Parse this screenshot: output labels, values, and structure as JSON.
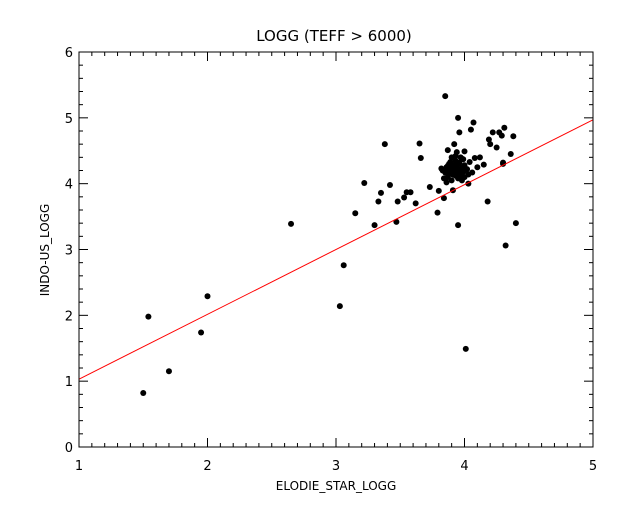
{
  "chart_data": {
    "type": "scatter",
    "title": "LOGG (TEFF > 6000)",
    "xlabel": "ELODIE_STAR_LOGG",
    "ylabel": "INDO-US_LOGG",
    "xlim": [
      1,
      5
    ],
    "ylim": [
      0,
      6
    ],
    "xticks": [
      1,
      2,
      3,
      4,
      5
    ],
    "yticks": [
      0,
      1,
      2,
      3,
      4,
      5,
      6
    ],
    "xtick_labels": [
      "1",
      "2",
      "3",
      "4",
      "5"
    ],
    "ytick_labels": [
      "0",
      "1",
      "2",
      "3",
      "4",
      "5",
      "6"
    ],
    "grid": false,
    "points_color": "#000000",
    "fit_line": {
      "color": "#ff0000",
      "x": [
        1,
        5
      ],
      "y": [
        1.03,
        4.97
      ]
    },
    "points": [
      [
        1.5,
        0.82
      ],
      [
        1.54,
        1.98
      ],
      [
        1.7,
        1.15
      ],
      [
        1.95,
        1.74
      ],
      [
        2.0,
        2.29
      ],
      [
        2.65,
        3.39
      ],
      [
        3.03,
        2.14
      ],
      [
        3.06,
        2.76
      ],
      [
        3.15,
        3.55
      ],
      [
        3.22,
        4.01
      ],
      [
        3.3,
        3.37
      ],
      [
        3.33,
        3.73
      ],
      [
        3.35,
        3.86
      ],
      [
        3.38,
        4.6
      ],
      [
        3.42,
        3.98
      ],
      [
        3.47,
        3.42
      ],
      [
        3.48,
        3.73
      ],
      [
        3.53,
        3.79
      ],
      [
        3.55,
        3.87
      ],
      [
        3.58,
        3.87
      ],
      [
        3.62,
        3.7
      ],
      [
        3.65,
        4.61
      ],
      [
        3.66,
        4.39
      ],
      [
        3.73,
        3.95
      ],
      [
        3.79,
        3.56
      ],
      [
        3.8,
        3.89
      ],
      [
        3.82,
        4.23
      ],
      [
        3.84,
        3.78
      ],
      [
        3.85,
        5.33
      ],
      [
        3.87,
        4.51
      ],
      [
        3.89,
        4.33
      ],
      [
        3.91,
        3.9
      ],
      [
        3.92,
        4.6
      ],
      [
        3.93,
        4.42
      ],
      [
        3.95,
        3.37
      ],
      [
        3.95,
        5.0
      ],
      [
        3.96,
        4.78
      ],
      [
        3.98,
        4.38
      ],
      [
        4.0,
        4.49
      ],
      [
        4.01,
        1.49
      ],
      [
        4.03,
        4.0
      ],
      [
        4.05,
        4.82
      ],
      [
        4.07,
        4.93
      ],
      [
        4.08,
        4.39
      ],
      [
        4.12,
        4.4
      ],
      [
        4.15,
        4.29
      ],
      [
        4.18,
        3.73
      ],
      [
        4.19,
        4.67
      ],
      [
        4.2,
        4.6
      ],
      [
        4.22,
        4.78
      ],
      [
        4.25,
        4.55
      ],
      [
        4.27,
        4.78
      ],
      [
        4.29,
        4.73
      ],
      [
        4.3,
        4.3
      ],
      [
        4.31,
        4.85
      ],
      [
        4.32,
        3.06
      ],
      [
        4.36,
        4.45
      ],
      [
        4.38,
        4.72
      ],
      [
        4.4,
        3.4
      ],
      [
        4.3,
        4.32
      ],
      [
        3.83,
        4.2
      ],
      [
        3.85,
        4.17
      ],
      [
        3.86,
        4.25
      ],
      [
        3.87,
        4.1
      ],
      [
        3.88,
        4.3
      ],
      [
        3.89,
        4.15
      ],
      [
        3.9,
        4.22
      ],
      [
        3.9,
        4.05
      ],
      [
        3.91,
        4.28
      ],
      [
        3.92,
        4.18
      ],
      [
        3.93,
        4.12
      ],
      [
        3.93,
        4.35
      ],
      [
        3.94,
        4.23
      ],
      [
        3.95,
        4.08
      ],
      [
        3.95,
        4.3
      ],
      [
        3.96,
        4.2
      ],
      [
        3.97,
        4.13
      ],
      [
        3.97,
        4.4
      ],
      [
        3.98,
        4.25
      ],
      [
        3.99,
        4.18
      ],
      [
        4.0,
        4.1
      ],
      [
        4.0,
        4.28
      ],
      [
        4.02,
        4.22
      ],
      [
        4.04,
        4.33
      ],
      [
        4.06,
        4.17
      ],
      [
        3.86,
        4.02
      ],
      [
        3.94,
        4.48
      ],
      [
        3.98,
        4.05
      ],
      [
        4.1,
        4.25
      ],
      [
        3.84,
        4.08
      ],
      [
        3.92,
        4.26
      ],
      [
        3.88,
        4.22
      ],
      [
        3.91,
        4.14
      ],
      [
        3.96,
        4.32
      ],
      [
        3.99,
        4.37
      ],
      [
        4.03,
        4.14
      ],
      [
        3.87,
        4.27
      ],
      [
        3.94,
        4.16
      ],
      [
        4.01,
        4.21
      ],
      [
        3.9,
        4.4
      ]
    ]
  }
}
